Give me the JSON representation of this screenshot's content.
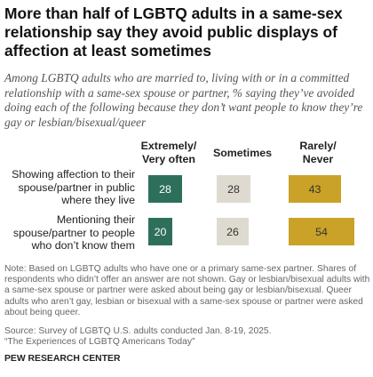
{
  "title": "More than half of LGBTQ adults in a same-sex relationship say they avoid public displays of affection at least sometimes",
  "subtitle": "Among LGBTQ adults who are married to, living with or in a committed relationship with a same-sex spouse or partner, % saying they’ve avoided doing each of the following because they don’t want people to know they’re gay or lesbian/bisexual/queer",
  "colors": {
    "extremely_very_often": "#2e6f5c",
    "sometimes": "#dedad0",
    "rarely_never": "#c9a227"
  },
  "chart_data": {
    "type": "bar",
    "categories": [
      "Showing affection to their spouse/partner in public where they live",
      "Mentioning their spouse/partner to people who don’t know them"
    ],
    "series": [
      {
        "name": "Extremely/ Very often",
        "values": [
          28,
          20
        ]
      },
      {
        "name": "Sometimes",
        "values": [
          28,
          26
        ]
      },
      {
        "name": "Rarely/ Never",
        "values": [
          43,
          54
        ]
      }
    ]
  },
  "note": "Note: Based on LGBTQ adults who have one or a primary same-sex partner. Shares of respondents who didn’t offer an answer are not shown. Gay or lesbian/bisexual adults with a same-sex spouse or partner were asked about being gay or lesbian/bisexual. Queer adults who aren’t gay, lesbian or bisexual with a same-sex spouse or partner were asked about being queer.",
  "source": "Source: Survey of LGBTQ U.S. adults conducted Jan. 8-19, 2025.",
  "report": "“The Experiences of LGBTQ Americans Today”",
  "org": "PEW RESEARCH CENTER"
}
